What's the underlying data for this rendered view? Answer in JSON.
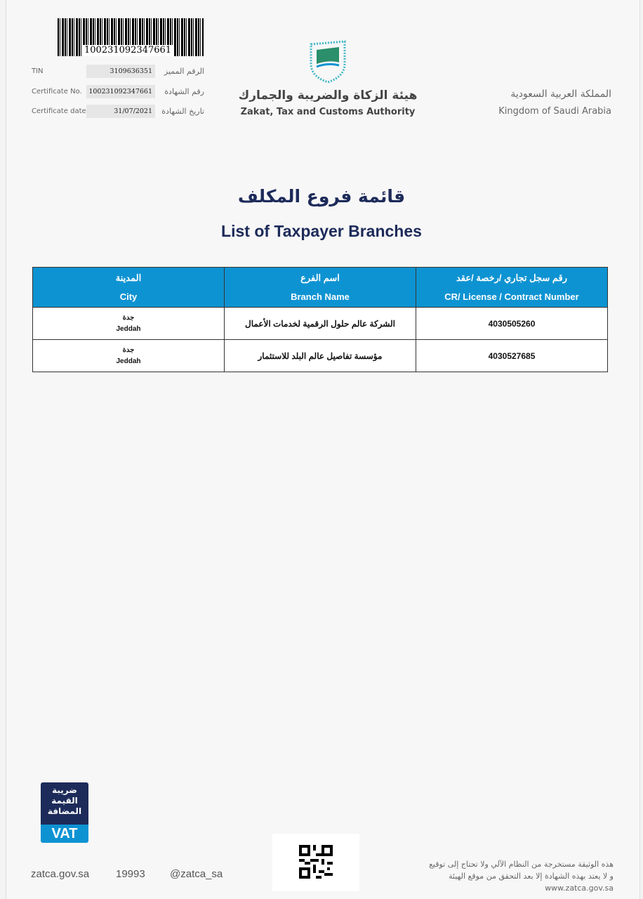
{
  "header": {
    "barcode_number": "100231092347661",
    "fields": [
      {
        "label_en": "TIN",
        "value": "3109636351",
        "label_ar": "الرقم المميز"
      },
      {
        "label_en": "Certificate No.",
        "value": "100231092347661",
        "label_ar": "رقم الشهادة"
      },
      {
        "label_en": "Certificate date",
        "value": "31/07/2021",
        "label_ar": "تاريخ الشهادة"
      }
    ],
    "authority_ar": "هيئة الزكاة والضريبة والجمارك",
    "authority_en": "Zakat, Tax and Customs Authority",
    "country_ar": "المملكة العربية السعودية",
    "country_en": "Kingdom of Saudi Arabia"
  },
  "title_ar": "قائمة فروع المكلف",
  "title_en": "List of Taxpayer Branches",
  "table": {
    "columns": [
      {
        "ar": "المدينة",
        "en": "City"
      },
      {
        "ar": "اسم الفرع",
        "en": "Branch Name"
      },
      {
        "ar": "رقم سجل تجاري /رخصة /عقد",
        "en": "CR/ License / Contract Number"
      }
    ],
    "rows": [
      {
        "city_ar": "جدة",
        "city_en": "Jeddah",
        "branch": "الشركة عالم حلول الرقمية لخدمات الأعمال",
        "number": "4030505260"
      },
      {
        "city_ar": "جدة",
        "city_en": "Jeddah",
        "branch": "مؤسسة تفاصيل عالم البلد للاستثمار",
        "number": "4030527685"
      }
    ]
  },
  "footer": {
    "vat_logo_ar": "ضريبة القيمة المضافة",
    "vat_logo_en": "VAT",
    "website": "zatca.gov.sa",
    "phone": "19993",
    "social": "@zatca_sa",
    "disclaimer_1": "هذه الوثيقة مستخرجة من النظام الآلي ولا تحتاج إلى توقيع",
    "disclaimer_2": "و لا يعتد بهذه الشهادة إلا بعد التحقق من موقع الهيئة",
    "disclaimer_url": "www.zatca.gov.sa"
  },
  "colors": {
    "header_blue": "#0e93d2",
    "title_navy": "#1d2b5a"
  }
}
